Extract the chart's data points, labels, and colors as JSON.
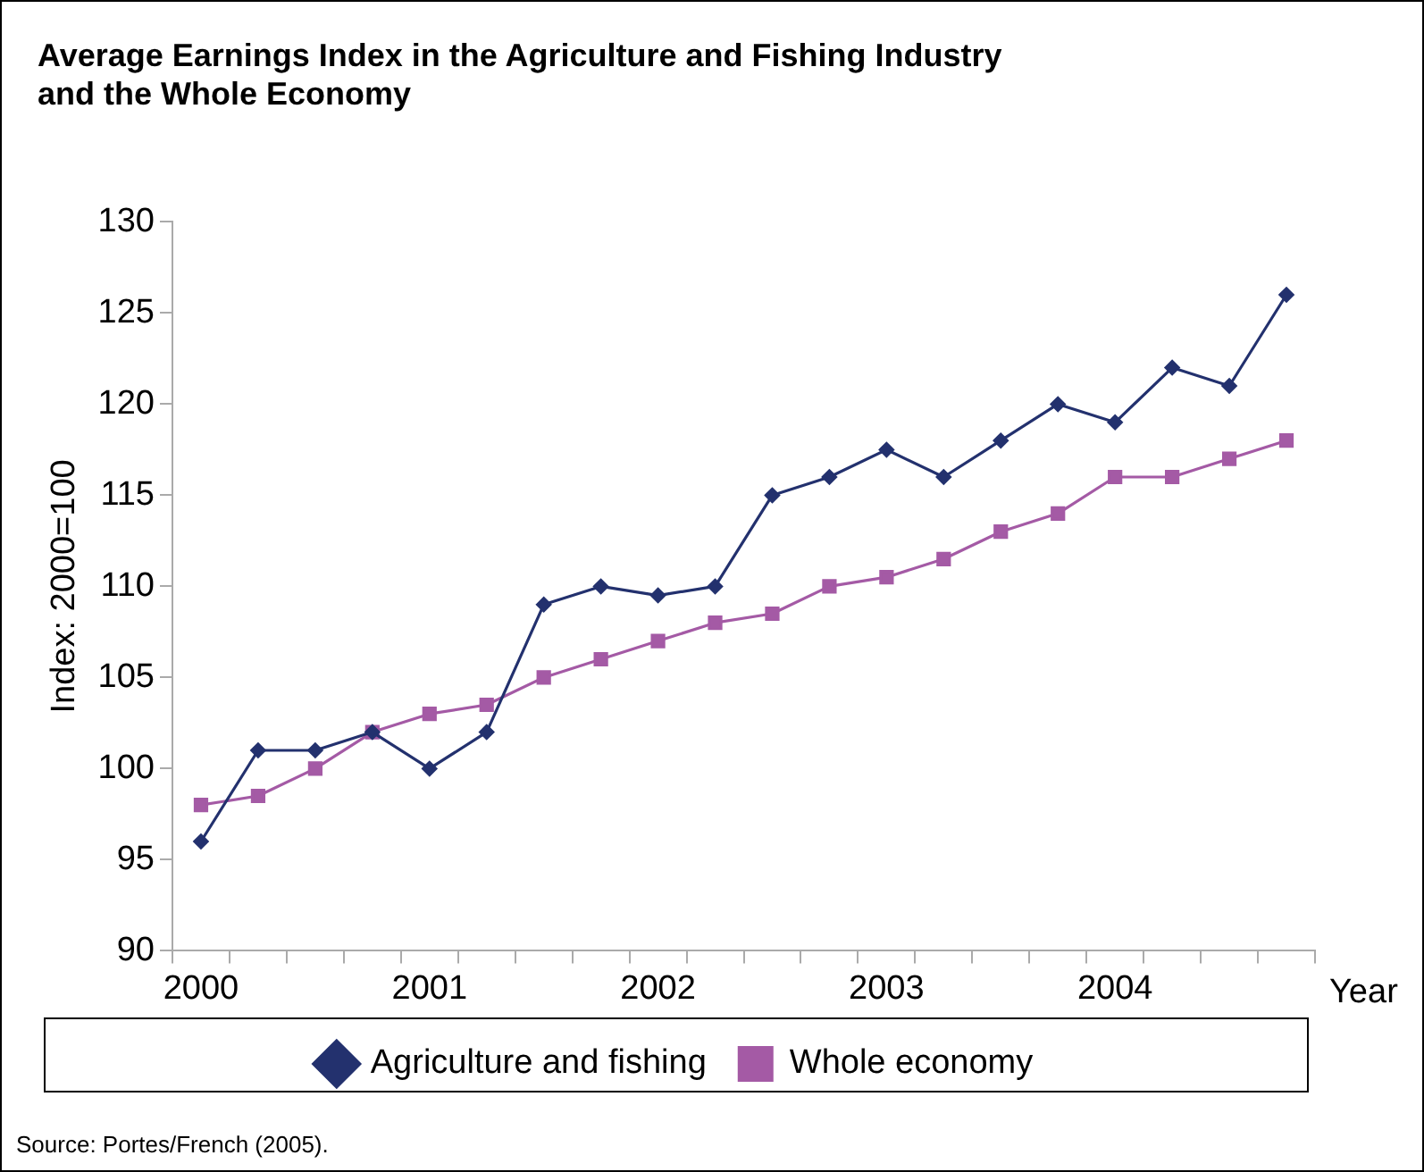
{
  "chart_data": {
    "type": "line",
    "title": "Average Earnings Index in the Agriculture and Fishing Industry\nand the Whole Economy",
    "ylabel": "Index: 2000=100",
    "xlabel": "Year",
    "categories": [
      "2000",
      null,
      null,
      null,
      "2001",
      null,
      null,
      null,
      "2002",
      null,
      null,
      null,
      "2003",
      null,
      null,
      null,
      "2004",
      null,
      null,
      null
    ],
    "series": [
      {
        "name": "Agriculture and fishing",
        "color": "#23316e",
        "marker": "diamond",
        "values": [
          96,
          101,
          101,
          102,
          100,
          102,
          109,
          110,
          109.5,
          110,
          115,
          116,
          117.5,
          116,
          118,
          120,
          119,
          122,
          121,
          126
        ]
      },
      {
        "name": "Whole economy",
        "color": "#a45aa5",
        "marker": "square",
        "values": [
          98,
          98.5,
          100,
          102,
          103,
          103.5,
          105,
          106,
          107,
          108,
          108.5,
          110,
          110.5,
          111.5,
          113,
          114,
          116,
          116,
          117,
          118
        ]
      }
    ],
    "ylim": [
      90,
      130
    ],
    "yticks": [
      90,
      95,
      100,
      105,
      110,
      115,
      120,
      125,
      130
    ],
    "grid": false,
    "legend": "bottom",
    "line_style": "solid",
    "annotations": [
      "Source: Portes/French (2005)."
    ]
  }
}
